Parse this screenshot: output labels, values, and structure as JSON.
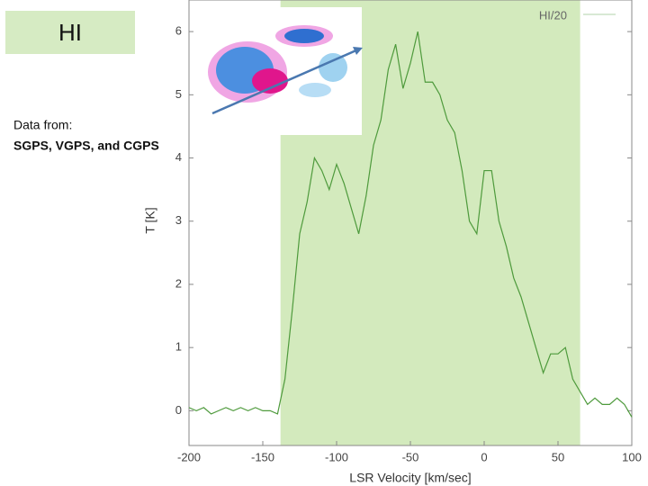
{
  "slide": {
    "title": "HI",
    "note_line1": "Data from:",
    "note_line2": "SGPS, VGPS, and CGPS"
  },
  "chart_data": {
    "type": "line",
    "x_label": "LSR Velocity [km/sec]",
    "y_label": "T [K]",
    "x": [
      -200,
      -195,
      -190,
      -185,
      -180,
      -175,
      -170,
      -165,
      -160,
      -155,
      -150,
      -145,
      -140,
      -135,
      -130,
      -125,
      -120,
      -115,
      -110,
      -105,
      -100,
      -95,
      -90,
      -85,
      -80,
      -75,
      -70,
      -65,
      -60,
      -55,
      -50,
      -45,
      -40,
      -35,
      -30,
      -25,
      -20,
      -15,
      -10,
      -5,
      0,
      5,
      10,
      15,
      20,
      25,
      30,
      35,
      40,
      45,
      50,
      55,
      60,
      65,
      70,
      75,
      80,
      85,
      90,
      95,
      100
    ],
    "series": [
      {
        "name": "HI/20",
        "color": "#4e9a3c",
        "values": [
          0.05,
          0.0,
          0.05,
          -0.05,
          0.0,
          0.05,
          0.0,
          0.05,
          0.0,
          0.05,
          0.0,
          0.0,
          -0.05,
          0.5,
          1.6,
          2.8,
          3.3,
          4.0,
          3.8,
          3.5,
          3.9,
          3.6,
          3.2,
          2.8,
          3.4,
          4.2,
          4.6,
          5.4,
          5.8,
          5.1,
          5.5,
          6.0,
          5.2,
          5.2,
          5.0,
          4.6,
          4.4,
          3.8,
          3.0,
          2.8,
          3.8,
          3.8,
          3.0,
          2.6,
          2.1,
          1.8,
          1.4,
          1.0,
          0.6,
          0.9,
          0.9,
          1.0,
          0.5,
          0.3,
          0.1,
          0.2,
          0.1,
          0.1,
          0.2,
          0.1,
          -0.1
        ]
      }
    ],
    "xlim": [
      -200,
      100
    ],
    "ylim": [
      -0.55,
      6.5
    ],
    "xticks": [
      -200,
      -150,
      -100,
      -50,
      0,
      50,
      100
    ],
    "yticks": [
      0,
      1,
      2,
      3,
      4,
      5,
      6
    ],
    "shaded_range": [
      -138,
      65
    ],
    "shaded_color": "#d3eabd",
    "grid": false,
    "legend": "top-right"
  }
}
